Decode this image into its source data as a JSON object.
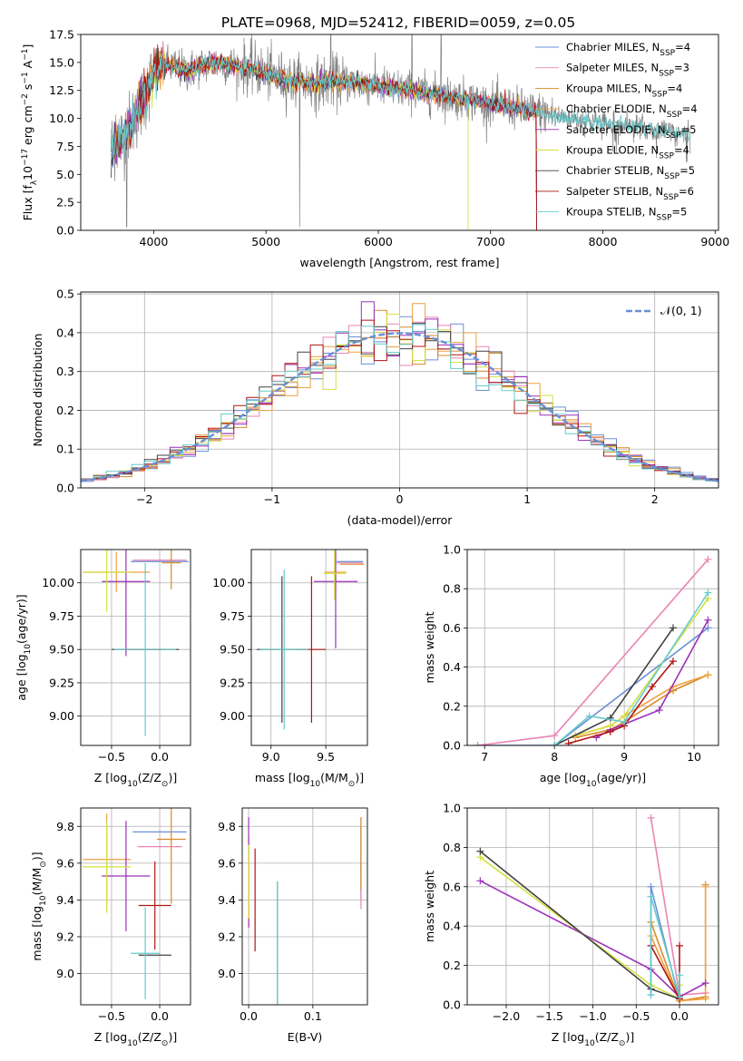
{
  "figure": {
    "title": "PLATE=0968, MJD=52412, FIBERID=0059, z=0.05",
    "series_colors": [
      "#6a8fd8",
      "#e985b4",
      "#d88a2a",
      "#f0a040",
      "#9c30b8",
      "#d4e040",
      "#404040",
      "#b01515",
      "#66cccc"
    ]
  },
  "chart_data": [
    {
      "id": "spectrum",
      "type": "line",
      "title": "PLATE=0968, MJD=52412, FIBERID=0059, z=0.05",
      "xlabel": "wavelength [Angstrom, rest frame]",
      "ylabel": "Flux [f",
      "ylabel_sub": "λ",
      "ylabel_mid": "10",
      "ylabel_sup1": "−17",
      "ylabel_tail": " erg cm",
      "ylabel_sup2": "−2",
      "ylabel_s": " s",
      "ylabel_sup3": "−1",
      "ylabel_a": " A",
      "ylabel_sup4": "−1",
      "ylabel_end": "]",
      "xlim": [
        3350,
        9030
      ],
      "ylim": [
        0,
        17.5
      ],
      "xticks": [
        4000,
        5000,
        6000,
        7000,
        8000,
        9000
      ],
      "yticks": [
        0.0,
        2.5,
        5.0,
        7.5,
        10.0,
        12.5,
        15.0,
        17.5
      ],
      "ytick_labels": [
        "0.0",
        "2.5",
        "5.0",
        "7.5",
        "10.0",
        "12.5",
        "15.0",
        "17.5"
      ],
      "observed_color": "#808080",
      "continuum": {
        "x": [
          3620,
          3700,
          3800,
          3900,
          4000,
          4100,
          4200,
          4300,
          4400,
          4500,
          4600,
          4700,
          4800,
          4900,
          5000,
          5200,
          5400,
          5600,
          5800,
          6000,
          6200,
          6400,
          6600,
          6800,
          7000,
          7200,
          7400,
          7600,
          7800,
          8000,
          8200,
          8400,
          8600,
          8700
        ],
        "y": [
          7.5,
          8.0,
          9.5,
          11.5,
          14.0,
          14.8,
          14.5,
          14.2,
          14.6,
          14.9,
          15.0,
          14.7,
          14.6,
          14.4,
          14.0,
          13.4,
          13.1,
          13.3,
          13.2,
          12.9,
          12.6,
          12.3,
          12.0,
          11.7,
          11.3,
          11.0,
          10.6,
          10.2,
          9.9,
          9.6,
          9.4,
          9.1,
          8.8,
          8.6
        ]
      },
      "legend": [
        {
          "label": "Chabrier MILES, N",
          "sub": "SSP",
          "tail": "=4"
        },
        {
          "label": "Salpeter MILES, N",
          "sub": "SSP",
          "tail": "=3"
        },
        {
          "label": "Kroupa MILES, N",
          "sub": "SSP",
          "tail": "=4"
        },
        {
          "label": "Chabrier ELODIE, N",
          "sub": "SSP",
          "tail": "=4"
        },
        {
          "label": "Salpeter ELODIE, N",
          "sub": "SSP",
          "tail": "=5"
        },
        {
          "label": "Kroupa ELODIE, N",
          "sub": "SSP",
          "tail": "=4"
        },
        {
          "label": "Chabrier STELIB, N",
          "sub": "SSP",
          "tail": "=5"
        },
        {
          "label": "Salpeter STELIB, N",
          "sub": "SSP",
          "tail": "=6"
        },
        {
          "label": "Kroupa STELIB, N",
          "sub": "SSP",
          "tail": "=5"
        }
      ],
      "legend_position": "upper right"
    },
    {
      "id": "residuals",
      "type": "bar",
      "xlabel": "(data-model)/error",
      "ylabel": "Normed distribution",
      "xlim": [
        -2.5,
        2.5
      ],
      "ylim": [
        0,
        0.505
      ],
      "xticks": [
        -2,
        -1,
        0,
        1,
        2
      ],
      "xtick_labels": [
        "−2",
        "−1",
        "0",
        "1",
        "2"
      ],
      "yticks": [
        0.0,
        0.1,
        0.2,
        0.3,
        0.4,
        0.5
      ],
      "ytick_labels": [
        "0.0",
        "0.1",
        "0.2",
        "0.3",
        "0.4",
        "0.5"
      ],
      "bin_width": 0.1,
      "normal_curve": {
        "label": "𝒩(0, 1)",
        "color": "#6a8fd8"
      },
      "legend_position": "upper right"
    },
    {
      "id": "age_vs_Z",
      "type": "scatter",
      "xlabel": "Z [log",
      "xlabel_sub": "10",
      "xlabel_tail": "(Z/Z",
      "xlabel_sub2": "⊙",
      "xlabel_end": ")]",
      "ylabel": "age  [log",
      "ylabel_sub": "10",
      "ylabel_tail": "(age/yr)]",
      "xlim": [
        -0.82,
        0.32
      ],
      "ylim": [
        8.78,
        10.25
      ],
      "xticks": [
        -0.5,
        0.0
      ],
      "xtick_labels": [
        "−0.5",
        "0.0"
      ],
      "yticks": [
        9.0,
        9.25,
        9.5,
        9.75,
        10.0
      ],
      "ytick_labels": [
        "9.00",
        "9.25",
        "9.50",
        "9.75",
        "10.00"
      ],
      "points": [
        {
          "x": 0.0,
          "y": 10.16,
          "xerr": 0.3,
          "yerr": 0.0
        },
        {
          "x": 0.0,
          "y": 10.17,
          "xerr": 0.28,
          "yerr": 0.0
        },
        {
          "x": 0.12,
          "y": 10.15,
          "xerr": 0.1,
          "yerr": 0.2
        },
        {
          "x": -0.45,
          "y": 10.08,
          "xerr": 0.35,
          "yerr": 0.15
        },
        {
          "x": -0.35,
          "y": 10.01,
          "xerr": 0.25,
          "yerr": 0.56
        },
        {
          "x": -0.55,
          "y": 10.08,
          "xerr": 0.25,
          "yerr": 0.3
        },
        {
          "x": -0.15,
          "y": 9.5,
          "xerr": 0.35,
          "yerr": 0.0
        },
        {
          "x": -0.15,
          "y": 9.5,
          "xerr": 0.2,
          "yerr": 0.0
        },
        {
          "x": -0.15,
          "y": 9.5,
          "xerr": 0.32,
          "yerr": 0.65
        }
      ]
    },
    {
      "id": "age_vs_mass",
      "type": "scatter",
      "xlabel": "mass [log",
      "xlabel_sub": "10",
      "xlabel_tail": "(M/M",
      "xlabel_sub2": "⊙",
      "xlabel_end": ")]",
      "xlim": [
        8.82,
        9.88
      ],
      "ylim": [
        8.78,
        10.25
      ],
      "xticks": [
        9.0,
        9.5
      ],
      "xtick_labels": [
        "9.0",
        "9.5"
      ],
      "yticks": [
        9.0,
        9.25,
        9.5,
        9.75,
        10.0
      ],
      "ytick_labels": [
        "9.00",
        "9.25",
        "9.50",
        "9.75",
        "10.00"
      ],
      "points": [
        {
          "x": 9.72,
          "y": 10.16,
          "xerr": 0.12,
          "yerr": 0.0
        },
        {
          "x": 9.72,
          "y": 10.15,
          "xerr": 0.12,
          "yerr": 0.0
        },
        {
          "x": 9.74,
          "y": 10.14,
          "xerr": 0.11,
          "yerr": 0.0
        },
        {
          "x": 9.59,
          "y": 10.08,
          "xerr": 0.1,
          "yerr": 0.15
        },
        {
          "x": 9.59,
          "y": 10.01,
          "xerr": 0.2,
          "yerr": 0.5
        },
        {
          "x": 9.58,
          "y": 10.07,
          "xerr": 0.1,
          "yerr": 0.2
        },
        {
          "x": 9.1,
          "y": 9.5,
          "xerr": 0.23,
          "yerr": 0.55
        },
        {
          "x": 9.37,
          "y": 9.5,
          "xerr": 0.13,
          "yerr": 0.55
        },
        {
          "x": 9.12,
          "y": 9.5,
          "xerr": 0.22,
          "yerr": 0.6
        }
      ]
    },
    {
      "id": "mass_weight_vs_age",
      "type": "line",
      "xlabel": "age  [log",
      "xlabel_sub": "10",
      "xlabel_tail": "(age/yr)]",
      "ylabel": "mass weight",
      "xlim": [
        6.75,
        10.35
      ],
      "ylim": [
        0,
        1.0
      ],
      "xticks": [
        7,
        8,
        9,
        10
      ],
      "xtick_labels": [
        "7",
        "8",
        "9",
        "10"
      ],
      "yticks": [
        0.0,
        0.2,
        0.4,
        0.6,
        0.8,
        1.0
      ],
      "ytick_labels": [
        "0.0",
        "0.2",
        "0.4",
        "0.6",
        "0.8",
        "1.0"
      ],
      "series": [
        {
          "x": [
            6.9,
            8.0,
            10.2
          ],
          "y": [
            0.0,
            0.0,
            0.6
          ]
        },
        {
          "x": [
            6.9,
            8.0,
            10.2
          ],
          "y": [
            0.0,
            0.05,
            0.95
          ]
        },
        {
          "x": [
            8.3,
            8.8,
            9.0,
            9.7,
            10.2
          ],
          "y": [
            0.04,
            0.08,
            0.12,
            0.28,
            0.36
          ]
        },
        {
          "x": [
            8.3,
            8.8,
            9.0,
            9.7,
            10.2
          ],
          "y": [
            0.05,
            0.1,
            0.15,
            0.3,
            0.36
          ]
        },
        {
          "x": [
            8.6,
            8.8,
            9.5,
            10.2
          ],
          "y": [
            0.04,
            0.08,
            0.18,
            0.64
          ]
        },
        {
          "x": [
            8.3,
            8.8,
            9.0,
            10.2
          ],
          "y": [
            0.05,
            0.1,
            0.15,
            0.75
          ]
        },
        {
          "x": [
            8.0,
            8.8,
            9.7
          ],
          "y": [
            0.0,
            0.14,
            0.6
          ]
        },
        {
          "x": [
            8.2,
            8.8,
            9.0,
            9.4,
            9.7
          ],
          "y": [
            0.01,
            0.07,
            0.1,
            0.3,
            0.43
          ]
        },
        {
          "x": [
            8.0,
            8.5,
            9.0,
            10.2
          ],
          "y": [
            0.0,
            0.15,
            0.12,
            0.78
          ]
        }
      ]
    },
    {
      "id": "mass_vs_Z",
      "type": "scatter",
      "xlabel": "Z [log",
      "xlabel_sub": "10",
      "xlabel_tail": "(Z/Z",
      "xlabel_sub2": "⊙",
      "xlabel_end": ")]",
      "ylabel": "mass [log",
      "ylabel_sub": "10",
      "ylabel_tail": "(M/M",
      "ylabel_sub2": "⊙",
      "ylabel_end": ")]",
      "xlim": [
        -0.82,
        0.32
      ],
      "ylim": [
        8.83,
        9.9
      ],
      "xticks": [
        -0.5,
        0.0
      ],
      "xtick_labels": [
        "−0.5",
        "0.0"
      ],
      "yticks": [
        9.0,
        9.2,
        9.4,
        9.6,
        9.8
      ],
      "ytick_labels": [
        "9.0",
        "9.2",
        "9.4",
        "9.6",
        "9.8"
      ],
      "points": [
        {
          "x": 0.0,
          "y": 9.77,
          "xerr": 0.28,
          "yerr": 0.0
        },
        {
          "x": 0.0,
          "y": 9.69,
          "xerr": 0.23,
          "yerr": 0.0
        },
        {
          "x": 0.12,
          "y": 9.73,
          "xerr": 0.15,
          "yerr": 0.35
        },
        {
          "x": -0.55,
          "y": 9.62,
          "xerr": 0.25,
          "yerr": 0.25
        },
        {
          "x": -0.35,
          "y": 9.53,
          "xerr": 0.25,
          "yerr": 0.3
        },
        {
          "x": -0.55,
          "y": 9.58,
          "xerr": 0.25,
          "yerr": 0.25
        },
        {
          "x": -0.05,
          "y": 9.1,
          "xerr": 0.17,
          "yerr": 0.0
        },
        {
          "x": -0.05,
          "y": 9.37,
          "xerr": 0.17,
          "yerr": 0.24
        },
        {
          "x": -0.15,
          "y": 9.11,
          "xerr": 0.15,
          "yerr": 0.25
        }
      ]
    },
    {
      "id": "mass_vs_ebv",
      "type": "scatter",
      "xlabel": "E(B-V)",
      "xlim": [
        -0.01,
        0.185
      ],
      "ylim": [
        8.83,
        9.9
      ],
      "xticks": [
        0.0,
        0.1
      ],
      "xtick_labels": [
        "0.0",
        "0.1"
      ],
      "yticks": [
        9.0,
        9.2,
        9.4,
        9.6,
        9.8
      ],
      "ytick_labels": [
        "9.0",
        "9.2",
        "9.4",
        "9.6",
        "9.8"
      ],
      "points": [
        {
          "x": 0.175,
          "y": 9.6,
          "xerr": 0.0,
          "yerr": 0.2
        },
        {
          "x": 0.175,
          "y": 9.6,
          "xerr": 0.0,
          "yerr": 0.25
        },
        {
          "x": 0.175,
          "y": 9.65,
          "xerr": 0.0,
          "yerr": 0.2
        },
        {
          "x": 0.0,
          "y": 9.5,
          "xerr": 0.0,
          "yerr": 0.25
        },
        {
          "x": 0.0,
          "y": 9.55,
          "xerr": 0.0,
          "yerr": 0.3
        },
        {
          "x": 0.0,
          "y": 9.5,
          "xerr": 0.0,
          "yerr": 0.2
        },
        {
          "x": 0.045,
          "y": 9.1,
          "xerr": 0.0,
          "yerr": 0.4
        },
        {
          "x": 0.01,
          "y": 9.4,
          "xerr": 0.0,
          "yerr": 0.28
        },
        {
          "x": 0.045,
          "y": 9.1,
          "xerr": 0.0,
          "yerr": 0.4
        }
      ]
    },
    {
      "id": "mass_weight_vs_Z",
      "type": "line",
      "xlabel": "Z [log",
      "xlabel_sub": "10",
      "xlabel_tail": "(Z/Z",
      "xlabel_sub2": "⊙",
      "xlabel_end": ")]",
      "ylabel": "mass weight",
      "xlim": [
        -2.45,
        0.45
      ],
      "ylim": [
        0,
        1.0
      ],
      "xticks": [
        -2.0,
        -1.5,
        -1.0,
        -0.5,
        0.0
      ],
      "xtick_labels": [
        "−2.0",
        "−1.5",
        "−1.0",
        "−0.5",
        "0.0"
      ],
      "yticks": [
        0.0,
        0.2,
        0.4,
        0.6,
        0.8,
        1.0
      ],
      "ytick_labels": [
        "0.0",
        "0.2",
        "0.4",
        "0.6",
        "0.8",
        "1.0"
      ],
      "series": [
        {
          "x": [
            -0.33,
            -0.33,
            0.0,
            0.0
          ],
          "y": [
            0.05,
            0.6,
            0.02,
            0.05
          ]
        },
        {
          "x": [
            -0.33,
            0.0,
            0.3
          ],
          "y": [
            0.95,
            0.05,
            0.06
          ]
        },
        {
          "x": [
            -0.33,
            0.0,
            0.3,
            0.3
          ],
          "y": [
            0.42,
            0.02,
            0.04,
            0.61
          ]
        },
        {
          "x": [
            -0.33,
            0.0,
            0.3,
            0.3
          ],
          "y": [
            0.35,
            0.02,
            0.03,
            0.6
          ]
        },
        {
          "x": [
            -2.3,
            -0.33,
            0.0,
            0.3
          ],
          "y": [
            0.63,
            0.18,
            0.04,
            0.11
          ]
        },
        {
          "x": [
            -2.3,
            -0.33,
            0.0,
            0.0
          ],
          "y": [
            0.75,
            0.1,
            0.03,
            0.1
          ]
        },
        {
          "x": [
            -2.3,
            -0.33,
            0.0
          ],
          "y": [
            0.78,
            0.08,
            0.03
          ]
        },
        {
          "x": [
            -0.33,
            0.0,
            0.0
          ],
          "y": [
            0.3,
            0.03,
            0.3
          ]
        },
        {
          "x": [
            -0.33,
            -0.33,
            0.0,
            0.0
          ],
          "y": [
            0.05,
            0.55,
            0.04,
            0.15
          ]
        }
      ]
    }
  ]
}
